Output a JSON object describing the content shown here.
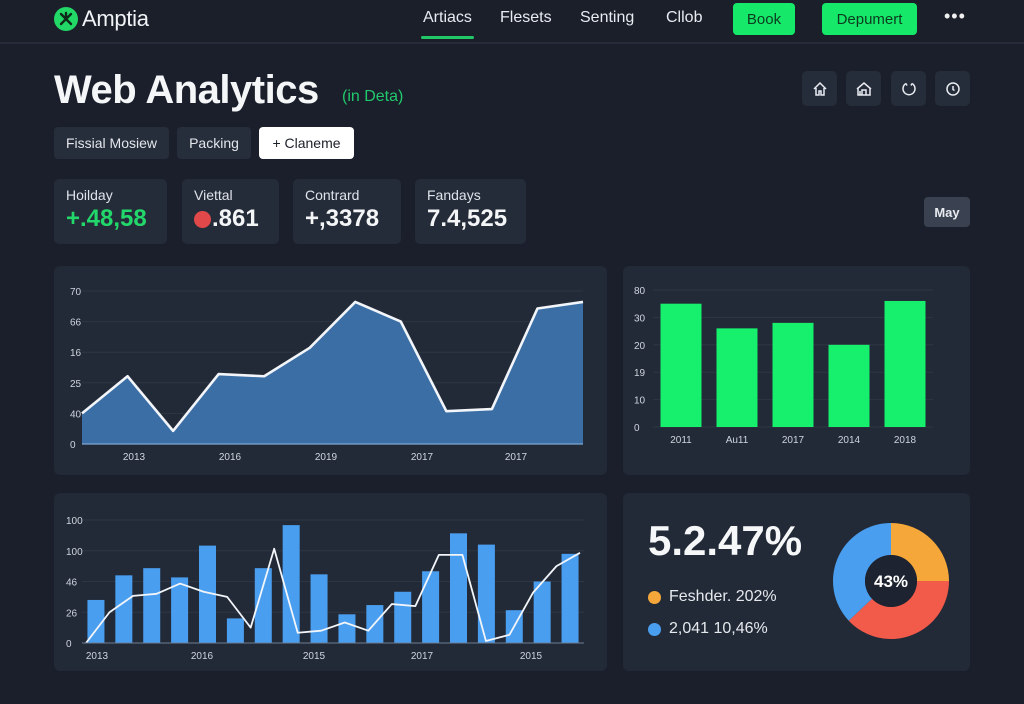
{
  "app": {
    "name": "Amptia"
  },
  "nav": {
    "items": [
      {
        "label": "Artiacs",
        "active": true
      },
      {
        "label": "Flesets",
        "active": false
      },
      {
        "label": "Senting",
        "active": false
      },
      {
        "label": "Cllob",
        "active": false
      }
    ],
    "book_button": "Book",
    "deployment_button": "Depumert",
    "more_label": "•••"
  },
  "header": {
    "title": "Web Analytics",
    "subtitle": "(in Deta)",
    "icon_buttons": [
      "home-icon",
      "store-icon",
      "refresh-icon",
      "clock-icon"
    ]
  },
  "filters": {
    "chips": [
      {
        "label": "Fissial Mosiew",
        "style": "dark"
      },
      {
        "label": "Packing",
        "style": "dark"
      },
      {
        "label": "+ Claneme",
        "style": "light"
      }
    ]
  },
  "kpis": [
    {
      "label": "Hoilday",
      "value": "+.48,58",
      "color": "#22d86a"
    },
    {
      "label": "Viettal",
      "value": ".861",
      "indicator": "red-dot"
    },
    {
      "label": "Contrard",
      "value": "+,3378"
    },
    {
      "label": "Fandays",
      "value": "7.4,525"
    }
  ],
  "period_selector": {
    "label": "May"
  },
  "colors": {
    "accent_green": "#16e86a",
    "area_blue": "#3a6ea5",
    "bar_blue": "#4a9ef0",
    "donut_orange": "#f5a73a",
    "donut_red": "#f25a4a",
    "donut_blue": "#4a9ef0",
    "background": "#1a1f2b",
    "card": "#232a37"
  },
  "summary": {
    "big_value": "5.2.47%",
    "donut_center": "43%",
    "legend": [
      {
        "label": "Feshder. 202%",
        "color": "#f5a73a"
      },
      {
        "label": "2,041 10,46%",
        "color": "#4a9ef0"
      }
    ]
  },
  "chart_data": [
    {
      "type": "area",
      "title": "",
      "y_tick_labels": [
        "70",
        "66",
        "16",
        "25",
        "40",
        "0"
      ],
      "x_tick_labels": [
        "2013",
        "2016",
        "2019",
        "2017",
        "2017"
      ],
      "ylim": [
        0,
        70
      ],
      "grid": true,
      "values": [
        14,
        31,
        6,
        32,
        31,
        44,
        65,
        56,
        15,
        16,
        62,
        65
      ]
    },
    {
      "type": "bar",
      "title": "",
      "categories": [
        "2011",
        "Au11",
        "2017",
        "2014",
        "2018"
      ],
      "y_tick_labels": [
        "80",
        "30",
        "20",
        "19",
        "10",
        "0"
      ],
      "ylim": [
        0,
        50
      ],
      "grid": true,
      "values": [
        45,
        36,
        38,
        30,
        46
      ]
    },
    {
      "type": "bar+line",
      "title": "",
      "y_tick_labels": [
        "100",
        "100",
        "46",
        "26",
        "0"
      ],
      "x_tick_labels": [
        "2013",
        "2016",
        "2015",
        "2017",
        "2015"
      ],
      "ylim": [
        0,
        120
      ],
      "grid": true,
      "series": [
        {
          "name": "bars",
          "values": [
            42,
            66,
            73,
            64,
            95,
            24,
            73,
            115,
            67,
            28,
            37,
            50,
            70,
            107,
            96,
            32,
            60,
            87
          ]
        },
        {
          "name": "line",
          "values": [
            0,
            30,
            46,
            48,
            58,
            50,
            45,
            15,
            92,
            10,
            12,
            20,
            12,
            38,
            36,
            86,
            86,
            2,
            8,
            49,
            75,
            88
          ]
        }
      ]
    },
    {
      "type": "pie",
      "title": "",
      "center_label": "43%",
      "slices": [
        {
          "name": "orange",
          "value": 25,
          "color": "#f5a73a"
        },
        {
          "name": "red",
          "value": 38,
          "color": "#f25a4a"
        },
        {
          "name": "blue",
          "value": 37,
          "color": "#4a9ef0"
        }
      ]
    }
  ]
}
